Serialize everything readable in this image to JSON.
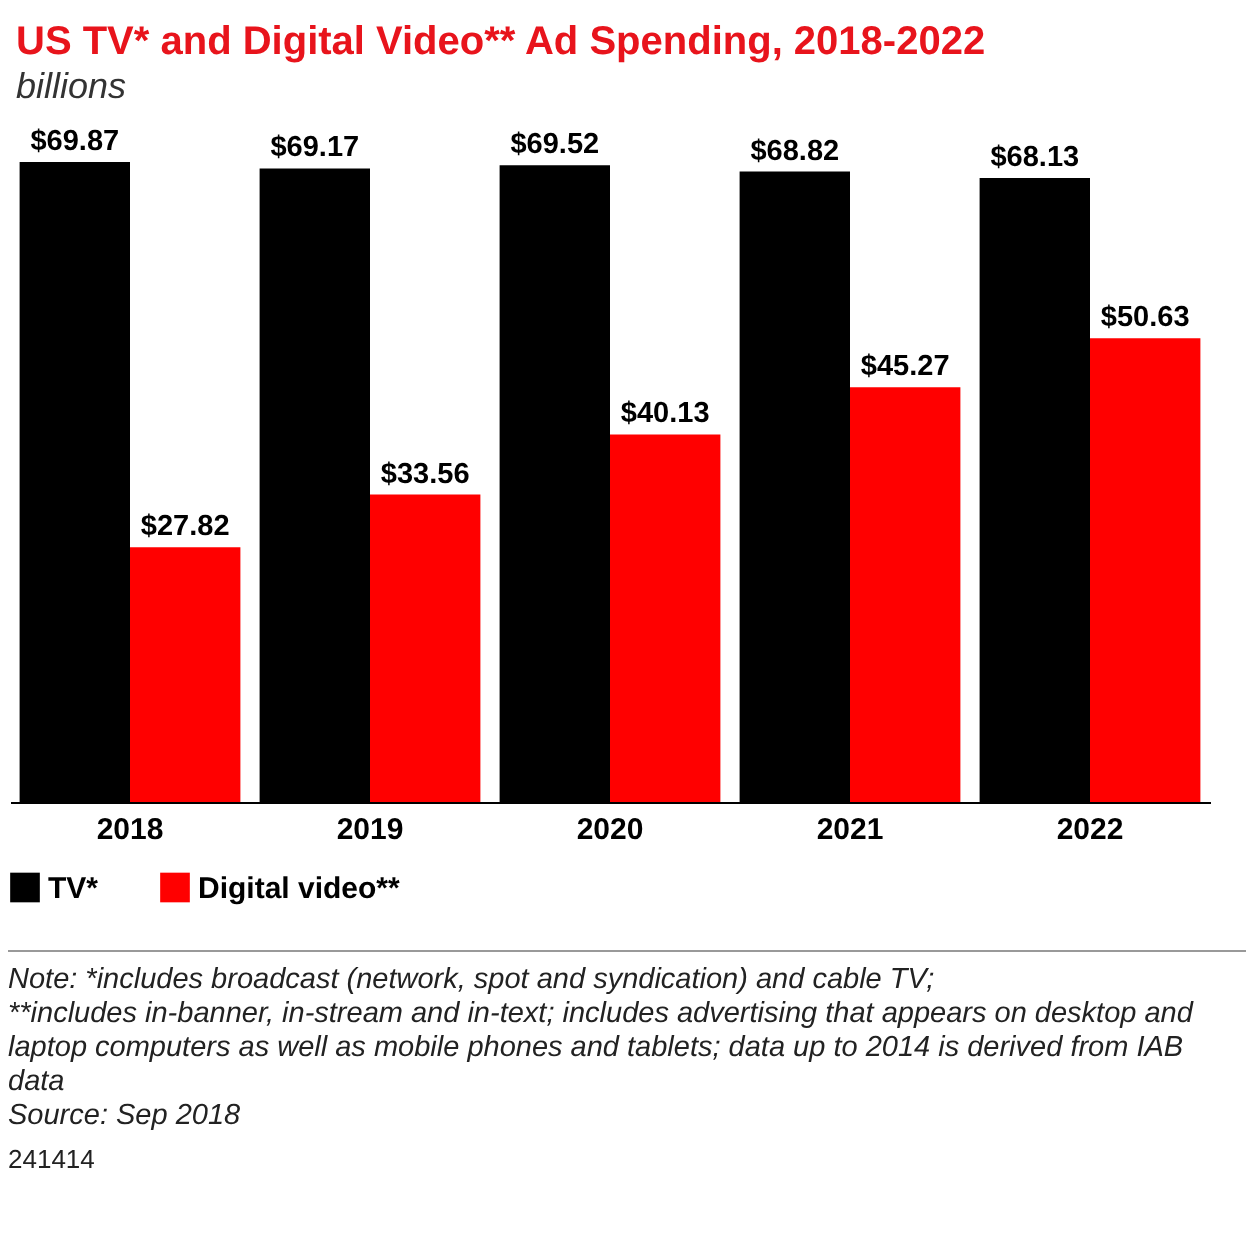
{
  "chart_data": {
    "type": "bar",
    "title": "US TV* and Digital Video** Ad Spending, 2018-2022",
    "subtitle": "billions",
    "categories": [
      "2018",
      "2019",
      "2020",
      "2021",
      "2022"
    ],
    "series": [
      {
        "name": "TV*",
        "color": "#000000",
        "values": [
          69.87,
          69.17,
          69.52,
          68.82,
          68.13
        ],
        "value_labels": [
          "$69.87",
          "$69.17",
          "$69.52",
          "$68.82",
          "$68.13"
        ]
      },
      {
        "name": "Digital video**",
        "color": "#ff0000",
        "values": [
          27.82,
          33.56,
          40.13,
          45.27,
          50.63
        ],
        "value_labels": [
          "$27.82",
          "$33.56",
          "$40.13",
          "$45.27",
          "$50.63"
        ]
      }
    ],
    "legend": "bottom left",
    "grid": false,
    "annotations": [
      "Note: *includes broadcast (network, spot and syndication) and cable TV;",
      "**includes in-banner, in-stream and in-text; includes advertising that appears on desktop and laptop computers as well as mobile phones and tablets; data up to 2014 is derived from IAB data",
      "Source: Sep 2018",
      "241414"
    ]
  }
}
